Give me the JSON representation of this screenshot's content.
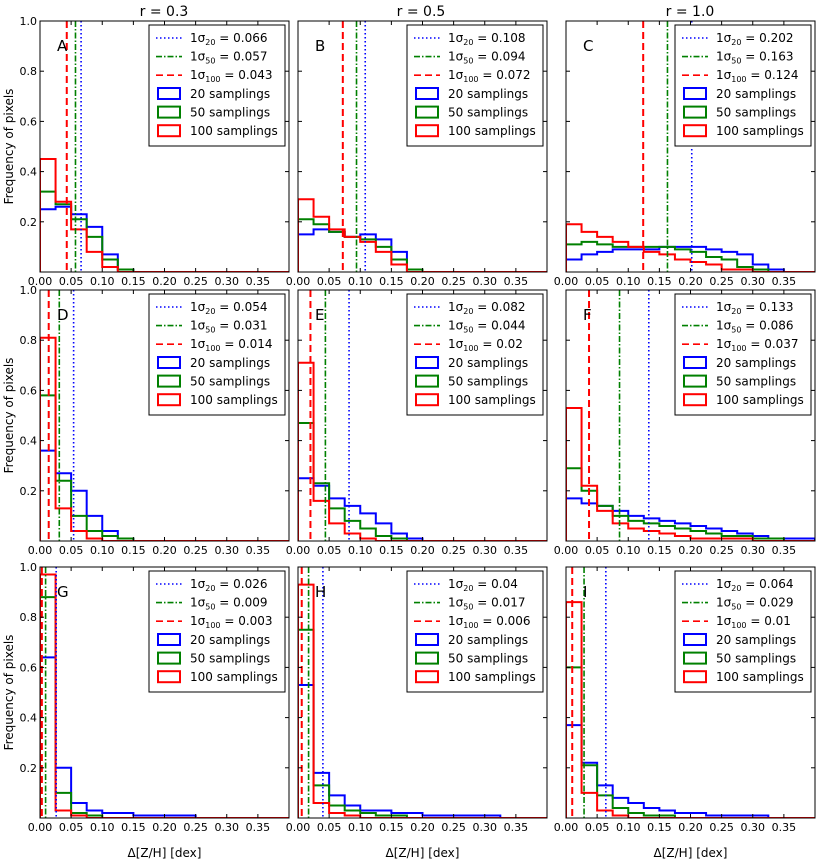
{
  "colors": {
    "s20": "#0000ff",
    "s50": "#008000",
    "s100": "#ff0000"
  },
  "column_titles": [
    "r = 0.3",
    "r = 0.5",
    "r = 1.0"
  ],
  "chart_data": {
    "type": "bar",
    "layout": "3x3 grid of step histograms",
    "xlabel": "Δ[Z/H] [dex]",
    "ylabel": "Frequency of pixels",
    "xlim": [
      0.0,
      0.4
    ],
    "ylim": [
      0.0,
      1.0
    ],
    "x_ticks": [
      "0.00",
      "0.05",
      "0.10",
      "0.15",
      "0.20",
      "0.25",
      "0.30",
      "0.35"
    ],
    "y_ticks": [
      "0.2",
      "0.4",
      "0.6",
      "0.8",
      "1.0"
    ],
    "bin_width": 0.025,
    "legend_labels": {
      "s20": "20 samplings",
      "s50": "50 samplings",
      "s100": "100 samplings"
    },
    "panels": [
      {
        "label": "A",
        "sigma_labels": {
          "s20": "0.066",
          "s50": "0.057",
          "s100": "0.043"
        },
        "sigma": {
          "s20": 0.066,
          "s50": 0.057,
          "s100": 0.043
        },
        "series": [
          {
            "name": "20 samplings",
            "key": "s20",
            "values": [
              0.25,
              0.26,
              0.23,
              0.18,
              0.07,
              0.01,
              0,
              0,
              0,
              0,
              0,
              0,
              0,
              0,
              0,
              0
            ]
          },
          {
            "name": "50 samplings",
            "key": "s50",
            "values": [
              0.32,
              0.27,
              0.21,
              0.14,
              0.05,
              0.01,
              0,
              0,
              0,
              0,
              0,
              0,
              0,
              0,
              0,
              0
            ]
          },
          {
            "name": "100 samplings",
            "key": "s100",
            "values": [
              0.45,
              0.28,
              0.17,
              0.08,
              0.02,
              0,
              0,
              0,
              0,
              0,
              0,
              0,
              0,
              0,
              0,
              0
            ]
          }
        ]
      },
      {
        "label": "B",
        "sigma_labels": {
          "s20": "0.108",
          "s50": "0.094",
          "s100": "0.072"
        },
        "sigma": {
          "s20": 0.108,
          "s50": 0.094,
          "s100": 0.072
        },
        "series": [
          {
            "name": "20 samplings",
            "key": "s20",
            "values": [
              0.15,
              0.17,
              0.16,
              0.14,
              0.15,
              0.13,
              0.08,
              0.01,
              0,
              0,
              0,
              0,
              0,
              0,
              0,
              0
            ]
          },
          {
            "name": "50 samplings",
            "key": "s50",
            "values": [
              0.21,
              0.19,
              0.16,
              0.14,
              0.13,
              0.1,
              0.05,
              0.01,
              0,
              0,
              0,
              0,
              0,
              0,
              0,
              0
            ]
          },
          {
            "name": "100 samplings",
            "key": "s100",
            "values": [
              0.29,
              0.22,
              0.17,
              0.14,
              0.12,
              0.08,
              0.03,
              0,
              0,
              0,
              0,
              0,
              0,
              0,
              0,
              0
            ]
          }
        ]
      },
      {
        "label": "C",
        "sigma_labels": {
          "s20": "0.202",
          "s50": "0.163",
          "s100": "0.124"
        },
        "sigma": {
          "s20": 0.202,
          "s50": 0.163,
          "s100": 0.124
        },
        "series": [
          {
            "name": "20 samplings",
            "key": "s20",
            "values": [
              0.05,
              0.07,
              0.08,
              0.09,
              0.09,
              0.09,
              0.1,
              0.1,
              0.1,
              0.09,
              0.08,
              0.07,
              0.03,
              0.01,
              0,
              0
            ]
          },
          {
            "name": "50 samplings",
            "key": "s50",
            "values": [
              0.11,
              0.12,
              0.11,
              0.1,
              0.1,
              0.1,
              0.1,
              0.09,
              0.08,
              0.06,
              0.05,
              0.02,
              0.01,
              0,
              0,
              0
            ]
          },
          {
            "name": "100 samplings",
            "key": "s100",
            "values": [
              0.19,
              0.16,
              0.14,
              0.12,
              0.1,
              0.08,
              0.07,
              0.05,
              0.04,
              0.03,
              0.01,
              0.01,
              0,
              0,
              0,
              0
            ]
          }
        ]
      },
      {
        "label": "D",
        "sigma_labels": {
          "s20": "0.054",
          "s50": "0.031",
          "s100": "0.014"
        },
        "sigma": {
          "s20": 0.054,
          "s50": 0.031,
          "s100": 0.014
        },
        "series": [
          {
            "name": "20 samplings",
            "key": "s20",
            "values": [
              0.36,
              0.27,
              0.2,
              0.1,
              0.04,
              0.01,
              0,
              0,
              0,
              0,
              0,
              0,
              0,
              0,
              0,
              0
            ]
          },
          {
            "name": "50 samplings",
            "key": "s50",
            "values": [
              0.58,
              0.24,
              0.1,
              0.04,
              0.02,
              0.01,
              0,
              0,
              0,
              0,
              0,
              0,
              0,
              0,
              0,
              0
            ]
          },
          {
            "name": "100 samplings",
            "key": "s100",
            "values": [
              0.81,
              0.13,
              0.04,
              0.01,
              0,
              0,
              0,
              0,
              0,
              0,
              0,
              0,
              0,
              0,
              0,
              0
            ]
          }
        ]
      },
      {
        "label": "E",
        "sigma_labels": {
          "s20": "0.082",
          "s50": "0.044",
          "s100": "0.02"
        },
        "sigma": {
          "s20": 0.082,
          "s50": 0.044,
          "s100": 0.02
        },
        "series": [
          {
            "name": "20 samplings",
            "key": "s20",
            "values": [
              0.25,
              0.22,
              0.17,
              0.14,
              0.11,
              0.07,
              0.03,
              0.01,
              0,
              0,
              0,
              0,
              0,
              0,
              0,
              0
            ]
          },
          {
            "name": "50 samplings",
            "key": "s50",
            "values": [
              0.47,
              0.23,
              0.13,
              0.08,
              0.05,
              0.02,
              0.01,
              0,
              0,
              0,
              0,
              0,
              0,
              0,
              0,
              0
            ]
          },
          {
            "name": "100 samplings",
            "key": "s100",
            "values": [
              0.71,
              0.16,
              0.07,
              0.03,
              0.01,
              0,
              0,
              0,
              0,
              0,
              0,
              0,
              0,
              0,
              0,
              0
            ]
          }
        ]
      },
      {
        "label": "F",
        "sigma_labels": {
          "s20": "0.133",
          "s50": "0.086",
          "s100": "0.037"
        },
        "sigma": {
          "s20": 0.133,
          "s50": 0.086,
          "s100": 0.037
        },
        "series": [
          {
            "name": "20 samplings",
            "key": "s20",
            "values": [
              0.17,
              0.15,
              0.14,
              0.12,
              0.1,
              0.09,
              0.08,
              0.07,
              0.06,
              0.05,
              0.04,
              0.03,
              0.02,
              0.01,
              0.01,
              0.01
            ]
          },
          {
            "name": "50 samplings",
            "key": "s50",
            "values": [
              0.29,
              0.2,
              0.14,
              0.1,
              0.08,
              0.07,
              0.06,
              0.05,
              0.04,
              0.03,
              0.02,
              0.02,
              0.01,
              0.01,
              0,
              0
            ]
          },
          {
            "name": "100 samplings",
            "key": "s100",
            "values": [
              0.53,
              0.22,
              0.12,
              0.07,
              0.05,
              0.04,
              0.03,
              0.02,
              0.01,
              0.01,
              0.01,
              0.01,
              0,
              0,
              0,
              0
            ]
          }
        ]
      },
      {
        "label": "G",
        "sigma_labels": {
          "s20": "0.026",
          "s50": "0.009",
          "s100": "0.003"
        },
        "sigma": {
          "s20": 0.026,
          "s50": 0.009,
          "s100": 0.003
        },
        "series": [
          {
            "name": "20 samplings",
            "key": "s20",
            "values": [
              0.64,
              0.2,
              0.06,
              0.03,
              0.02,
              0.02,
              0.01,
              0.01,
              0.01,
              0.01,
              0,
              0,
              0,
              0,
              0,
              0
            ]
          },
          {
            "name": "50 samplings",
            "key": "s50",
            "values": [
              0.88,
              0.1,
              0.02,
              0.01,
              0,
              0,
              0,
              0,
              0,
              0,
              0,
              0,
              0,
              0,
              0,
              0
            ]
          },
          {
            "name": "100 samplings",
            "key": "s100",
            "values": [
              0.97,
              0.03,
              0.01,
              0,
              0,
              0,
              0,
              0,
              0,
              0,
              0,
              0,
              0,
              0,
              0,
              0
            ]
          }
        ]
      },
      {
        "label": "H",
        "sigma_labels": {
          "s20": "0.04",
          "s50": "0.017",
          "s100": "0.006"
        },
        "sigma": {
          "s20": 0.04,
          "s50": 0.017,
          "s100": 0.006
        },
        "series": [
          {
            "name": "20 samplings",
            "key": "s20",
            "values": [
              0.53,
              0.18,
              0.09,
              0.05,
              0.03,
              0.03,
              0.02,
              0.02,
              0.01,
              0.01,
              0.01,
              0.01,
              0.01,
              0,
              0,
              0
            ]
          },
          {
            "name": "50 samplings",
            "key": "s50",
            "values": [
              0.75,
              0.13,
              0.05,
              0.03,
              0.02,
              0.01,
              0.01,
              0,
              0,
              0,
              0,
              0,
              0,
              0,
              0,
              0
            ]
          },
          {
            "name": "100 samplings",
            "key": "s100",
            "values": [
              0.93,
              0.06,
              0.02,
              0.01,
              0,
              0,
              0,
              0,
              0,
              0,
              0,
              0,
              0,
              0,
              0,
              0
            ]
          }
        ]
      },
      {
        "label": "I",
        "sigma_labels": {
          "s20": "0.064",
          "s50": "0.029",
          "s100": "0.01"
        },
        "sigma": {
          "s20": 0.064,
          "s50": 0.029,
          "s100": 0.01
        },
        "series": [
          {
            "name": "20 samplings",
            "key": "s20",
            "values": [
              0.37,
              0.22,
              0.13,
              0.08,
              0.06,
              0.04,
              0.03,
              0.02,
              0.02,
              0.01,
              0.01,
              0.01,
              0.01,
              0,
              0,
              0
            ]
          },
          {
            "name": "50 samplings",
            "key": "s50",
            "values": [
              0.6,
              0.21,
              0.09,
              0.04,
              0.02,
              0.01,
              0.01,
              0,
              0,
              0,
              0,
              0,
              0,
              0,
              0,
              0
            ]
          },
          {
            "name": "100 samplings",
            "key": "s100",
            "values": [
              0.86,
              0.1,
              0.03,
              0.01,
              0,
              0,
              0,
              0,
              0,
              0,
              0,
              0,
              0,
              0,
              0,
              0
            ]
          }
        ]
      }
    ]
  }
}
